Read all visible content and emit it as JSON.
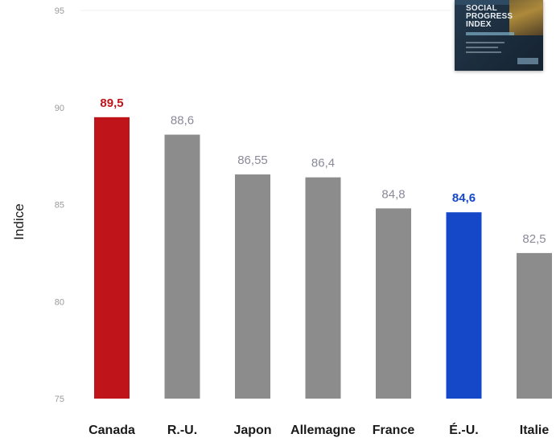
{
  "colors": {
    "highlight_canada": "#c0141b",
    "highlight_us": "#1448c8",
    "default_bar": "#8c8c8c",
    "default_value_label": "#8a8a9a",
    "tick_label": "#9a9a9a",
    "gridline": "#f0f0f0"
  },
  "cover": {
    "title": "SOCIAL PROGRESS INDEX",
    "icon": "report-cover-thumbnail"
  },
  "chart_data": {
    "type": "bar",
    "title": "",
    "xlabel": "",
    "ylabel": "Indice",
    "ylim": [
      75,
      95
    ],
    "yticks": [
      "75",
      "80",
      "85",
      "90",
      "95"
    ],
    "grid": false,
    "categories": [
      "Canada",
      "R.-U.",
      "Japon",
      "Allemagne",
      "France",
      "É.-U.",
      "Italie"
    ],
    "values": [
      89.5,
      88.6,
      86.55,
      86.4,
      84.8,
      84.6,
      82.5
    ],
    "value_labels": [
      "89,5",
      "88,6",
      "86,55",
      "86,4",
      "84,8",
      "84,6",
      "82,5"
    ],
    "highlight": {
      "Canada": "#c0141b",
      "É.-U.": "#1448c8"
    }
  }
}
